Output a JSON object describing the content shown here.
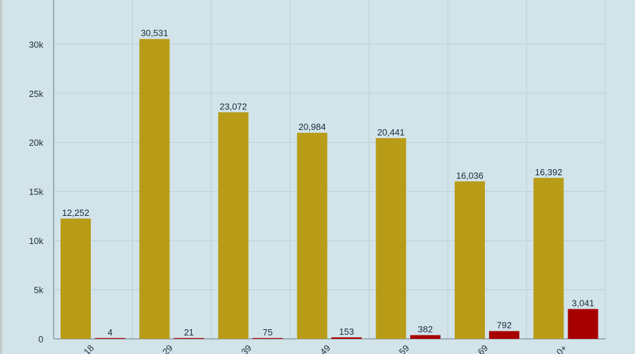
{
  "chart_data": {
    "type": "bar",
    "categories": [
      "18",
      "29",
      "39",
      "49",
      "59",
      "69",
      "0+"
    ],
    "series": [
      {
        "values": [
          12252,
          30531,
          23072,
          20984,
          20441,
          16036,
          16392
        ],
        "labels": [
          "12,252",
          "30,531",
          "23,072",
          "20,984",
          "20,441",
          "16,036",
          "16,392"
        ],
        "color": "#b89c18"
      },
      {
        "values": [
          4,
          21,
          75,
          153,
          382,
          792,
          3041
        ],
        "labels": [
          "4",
          "21",
          "75",
          "153",
          "382",
          "792",
          "3,041"
        ],
        "color": "#a80000"
      }
    ],
    "yticks": [
      {
        "value": 0,
        "label": "0"
      },
      {
        "value": 5000,
        "label": "5k"
      },
      {
        "value": 10000,
        "label": "10k"
      },
      {
        "value": 15000,
        "label": "15k"
      },
      {
        "value": 20000,
        "label": "20k"
      },
      {
        "value": 25000,
        "label": "25k"
      },
      {
        "value": 30000,
        "label": "30k"
      }
    ],
    "ylim": [
      0,
      34500
    ],
    "grid": true,
    "legend": "none",
    "title": "",
    "xlabel": "",
    "ylabel": ""
  },
  "colors": {
    "background": "#d2e4ea",
    "grid": "#bccfd6",
    "axis": "#8a9aa4"
  }
}
